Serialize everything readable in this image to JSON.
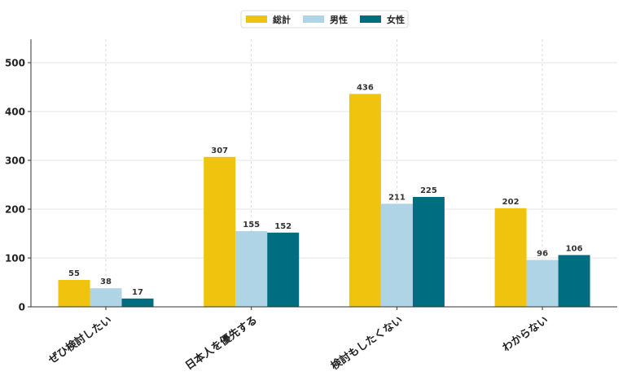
{
  "chart_data": {
    "type": "bar",
    "categories": [
      "ぜひ検討したい",
      "日本人を優先する",
      "検討もしたくない",
      "わからない"
    ],
    "series": [
      {
        "name": "総計",
        "values": [
          55,
          307,
          436,
          202
        ],
        "color": "#f0c30f"
      },
      {
        "name": "男性",
        "values": [
          38,
          155,
          211,
          96
        ],
        "color": "#aed4e6"
      },
      {
        "name": "女性",
        "values": [
          17,
          152,
          225,
          106
        ],
        "color": "#006e80"
      }
    ],
    "yticks": [
      0,
      100,
      200,
      300,
      400,
      500
    ],
    "ylim": [
      0,
      548
    ],
    "grid": true,
    "legend": "top-center",
    "title": "",
    "xlabel": "",
    "ylabel": ""
  }
}
